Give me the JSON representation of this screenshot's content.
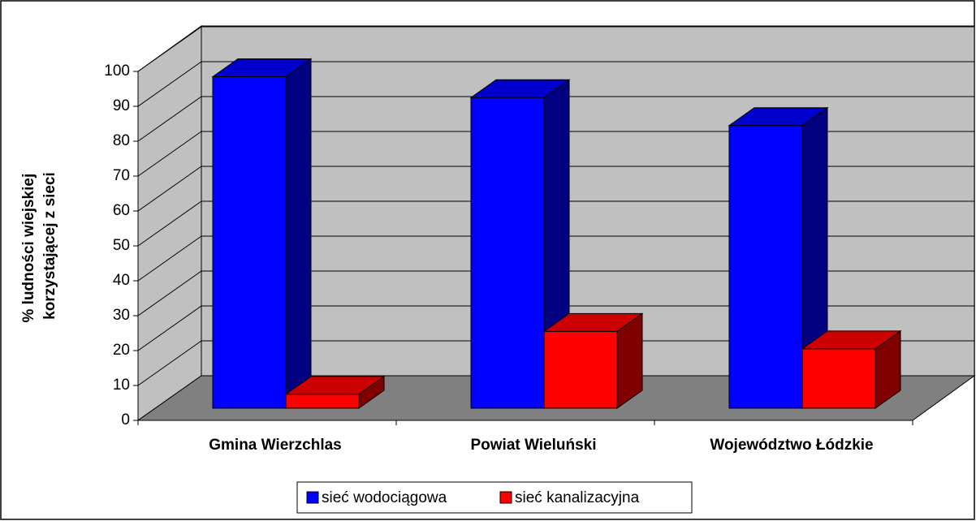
{
  "chart_data": {
    "type": "bar3d",
    "ylabel": [
      "% ludności wiejskiej",
      "korzystającej z sieci"
    ],
    "categories": [
      "Gmina Wierzchlas",
      "Powiat Wieluński",
      "Województwo Łódzkie"
    ],
    "series": [
      {
        "name": "sieć wodociągowa",
        "color": "#0000ff",
        "values": [
          95,
          89,
          81
        ]
      },
      {
        "name": "sieć kanalizacyjna",
        "color": "#ff0000",
        "values": [
          4,
          22,
          17
        ]
      }
    ],
    "ylim": [
      0,
      100
    ],
    "yticks": [
      0,
      10,
      20,
      30,
      40,
      50,
      60,
      70,
      80,
      90,
      100
    ],
    "grid": true,
    "legend": "bottom"
  }
}
